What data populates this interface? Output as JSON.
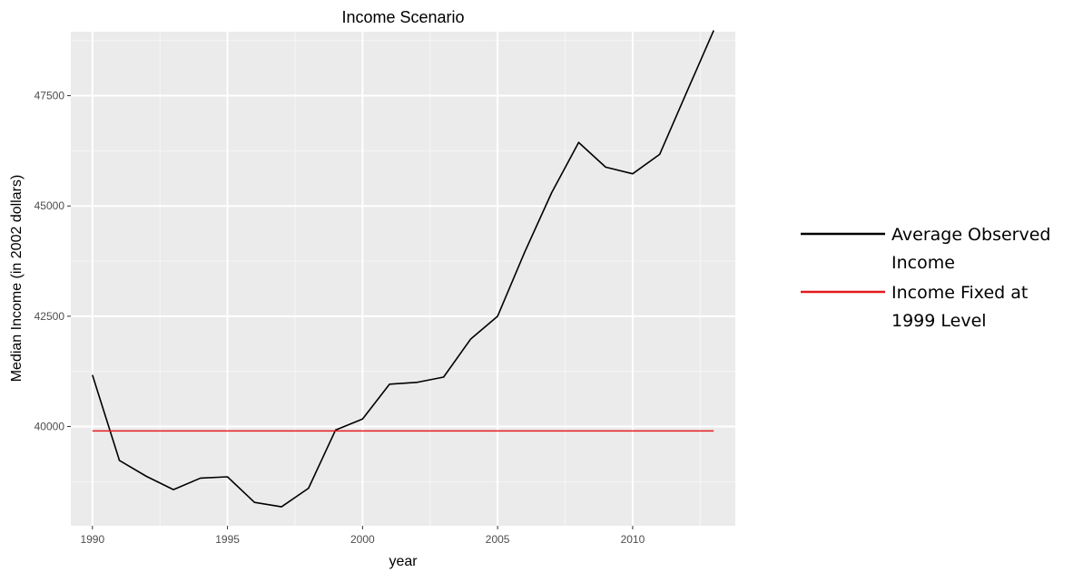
{
  "chart_data": {
    "type": "line",
    "title": "Income Scenario",
    "xlabel": "year",
    "ylabel": "Median Income (in 2002 dollars)",
    "xlim": [
      1989.2,
      2013.8
    ],
    "ylim": [
      37750,
      48950
    ],
    "x_ticks": [
      1990,
      1995,
      2000,
      2005,
      2010
    ],
    "y_ticks": [
      40000,
      42500,
      45000,
      47500
    ],
    "grid": true,
    "legend_position": "right",
    "series": [
      {
        "name": "Average Observed Income",
        "color": "#000000",
        "x": [
          1990,
          1991,
          1992,
          1993,
          1994,
          1995,
          1996,
          1997,
          1998,
          1999,
          2000,
          2001,
          2002,
          2003,
          2004,
          2005,
          2006,
          2007,
          2008,
          2009,
          2010,
          2011,
          2012,
          2013
        ],
        "y": [
          41170,
          39230,
          38870,
          38570,
          38830,
          38860,
          38280,
          38180,
          38600,
          39920,
          40170,
          40960,
          41000,
          41120,
          41980,
          42500,
          43950,
          45300,
          46440,
          45880,
          45730,
          46170,
          47580,
          48980
        ]
      },
      {
        "name": "Income Fixed at 1999 Level",
        "color": "#e41a1c",
        "x": [
          1990,
          2013
        ],
        "y": [
          39900,
          39900
        ]
      }
    ],
    "legend": [
      {
        "lines": [
          "Average Observed",
          "Income"
        ],
        "color": "#000000"
      },
      {
        "lines": [
          "Income Fixed at",
          "1999 Level"
        ],
        "color": "#e41a1c"
      }
    ]
  }
}
